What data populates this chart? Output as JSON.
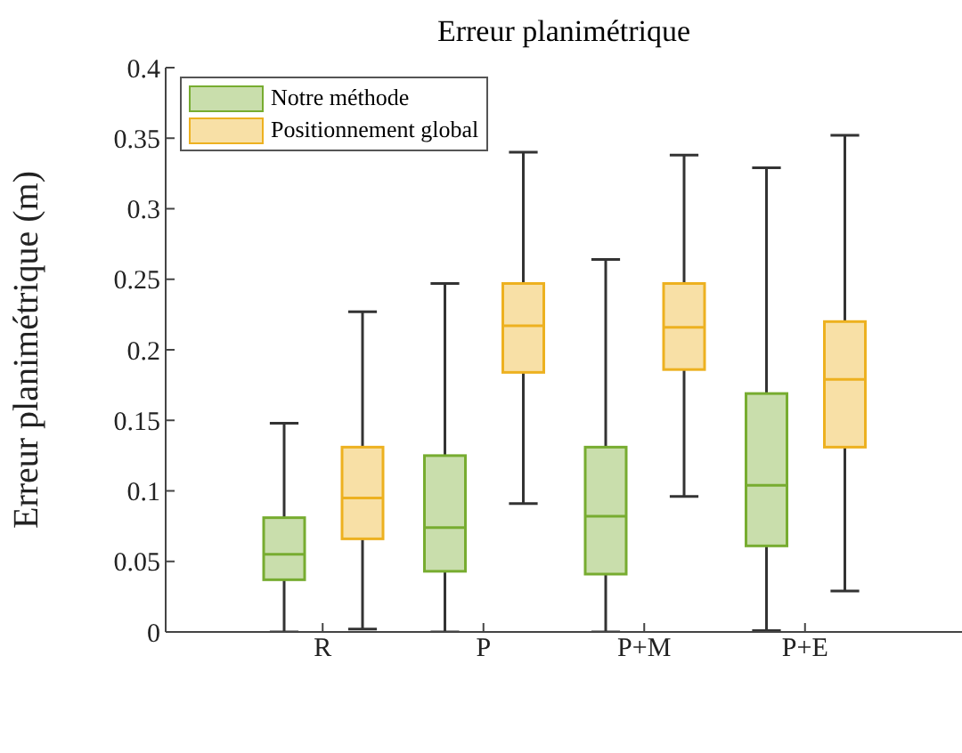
{
  "chart_data": {
    "type": "box",
    "title": "Erreur planimétrique",
    "ylabel": "Erreur planimétrique (m)",
    "categories": [
      "R",
      "P",
      "P+M",
      "P+E"
    ],
    "ylim": [
      0,
      0.4
    ],
    "yticks": [
      0,
      0.05,
      0.1,
      0.15,
      0.2,
      0.25,
      0.3,
      0.35,
      0.4
    ],
    "legend": "top left",
    "series": [
      {
        "name": "Notre méthode",
        "color": "#77ac30",
        "boxes": [
          {
            "low": 0,
            "q1": 0.037,
            "median": 0.055,
            "q3": 0.081,
            "high": 0.148
          },
          {
            "low": 0,
            "q1": 0.043,
            "median": 0.074,
            "q3": 0.125,
            "high": 0.247
          },
          {
            "low": 0,
            "q1": 0.041,
            "median": 0.082,
            "q3": 0.131,
            "high": 0.264
          },
          {
            "low": 0.001,
            "q1": 0.061,
            "median": 0.104,
            "q3": 0.169,
            "high": 0.329
          }
        ]
      },
      {
        "name": "Positionnement global",
        "color": "#edb120",
        "boxes": [
          {
            "low": 0.002,
            "q1": 0.066,
            "median": 0.095,
            "q3": 0.131,
            "high": 0.227
          },
          {
            "low": 0.091,
            "q1": 0.184,
            "median": 0.217,
            "q3": 0.247,
            "high": 0.34
          },
          {
            "low": 0.096,
            "q1": 0.186,
            "median": 0.216,
            "q3": 0.247,
            "high": 0.338
          },
          {
            "low": 0.029,
            "q1": 0.131,
            "median": 0.179,
            "q3": 0.22,
            "high": 0.352
          }
        ]
      }
    ]
  }
}
